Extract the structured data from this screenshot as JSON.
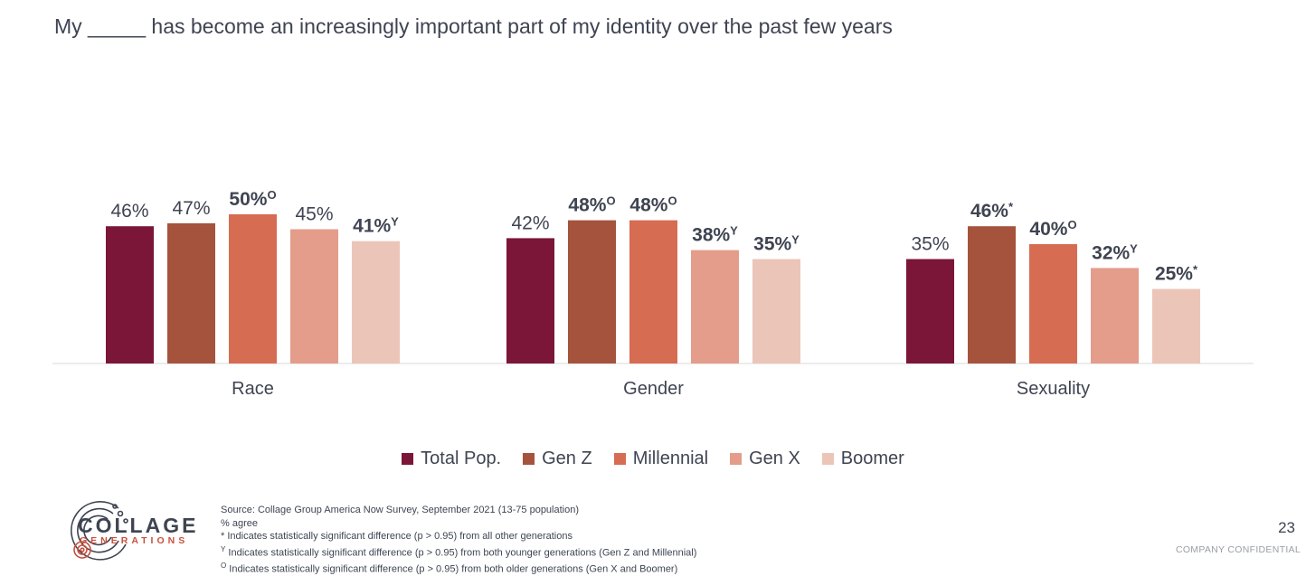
{
  "title": "My _____ has become an increasingly important part of my identity over the past few years",
  "chart_data": {
    "type": "bar",
    "categories": [
      "Race",
      "Gender",
      "Sexuality"
    ],
    "ylim": [
      0,
      60
    ],
    "grid": false,
    "legend_position": "bottom",
    "series": [
      {
        "name": "Total Pop.",
        "color": "#7b1638",
        "values": [
          46,
          42,
          35
        ],
        "labels": [
          "46%",
          "42%",
          "35%"
        ],
        "marks": [
          "",
          "",
          ""
        ]
      },
      {
        "name": "Gen Z",
        "color": "#a5533c",
        "values": [
          47,
          48,
          46
        ],
        "labels": [
          "47%",
          "48%",
          "46%"
        ],
        "marks": [
          "",
          "O",
          "*"
        ]
      },
      {
        "name": "Millennial",
        "color": "#d66c52",
        "values": [
          50,
          48,
          40
        ],
        "labels": [
          "50%",
          "48%",
          "40%"
        ],
        "marks": [
          "O",
          "O",
          "O"
        ]
      },
      {
        "name": "Gen X",
        "color": "#e39d8a",
        "values": [
          45,
          38,
          32
        ],
        "labels": [
          "45%",
          "38%",
          "32%"
        ],
        "marks": [
          "",
          "Y",
          "Y"
        ]
      },
      {
        "name": "Boomer",
        "color": "#ecc5b9",
        "values": [
          41,
          35,
          25
        ],
        "labels": [
          "41%",
          "35%",
          "25%"
        ],
        "marks": [
          "Y",
          "Y",
          "*"
        ]
      }
    ]
  },
  "brand": {
    "name": "COLLAGE",
    "subtitle": "GENERATIONS",
    "accent_color": "#c8503c"
  },
  "notes": {
    "source": "Source: Collage Group America Now Survey, September 2021 (13-75 population)",
    "metric": "% agree",
    "footnote_star": "* Indicates statistically significant difference (p > 0.95) from all other generations",
    "footnote_y_mark": "Y",
    "footnote_y": " Indicates statistically significant difference (p > 0.95) from both younger generations (Gen Z and Millennial)",
    "footnote_o_mark": "O",
    "footnote_o": " Indicates statistically significant difference (p > 0.95) from both older generations (Gen X and Boomer)"
  },
  "footer": {
    "page_number": "23",
    "confidential": "COMPANY CONFIDENTIAL"
  }
}
